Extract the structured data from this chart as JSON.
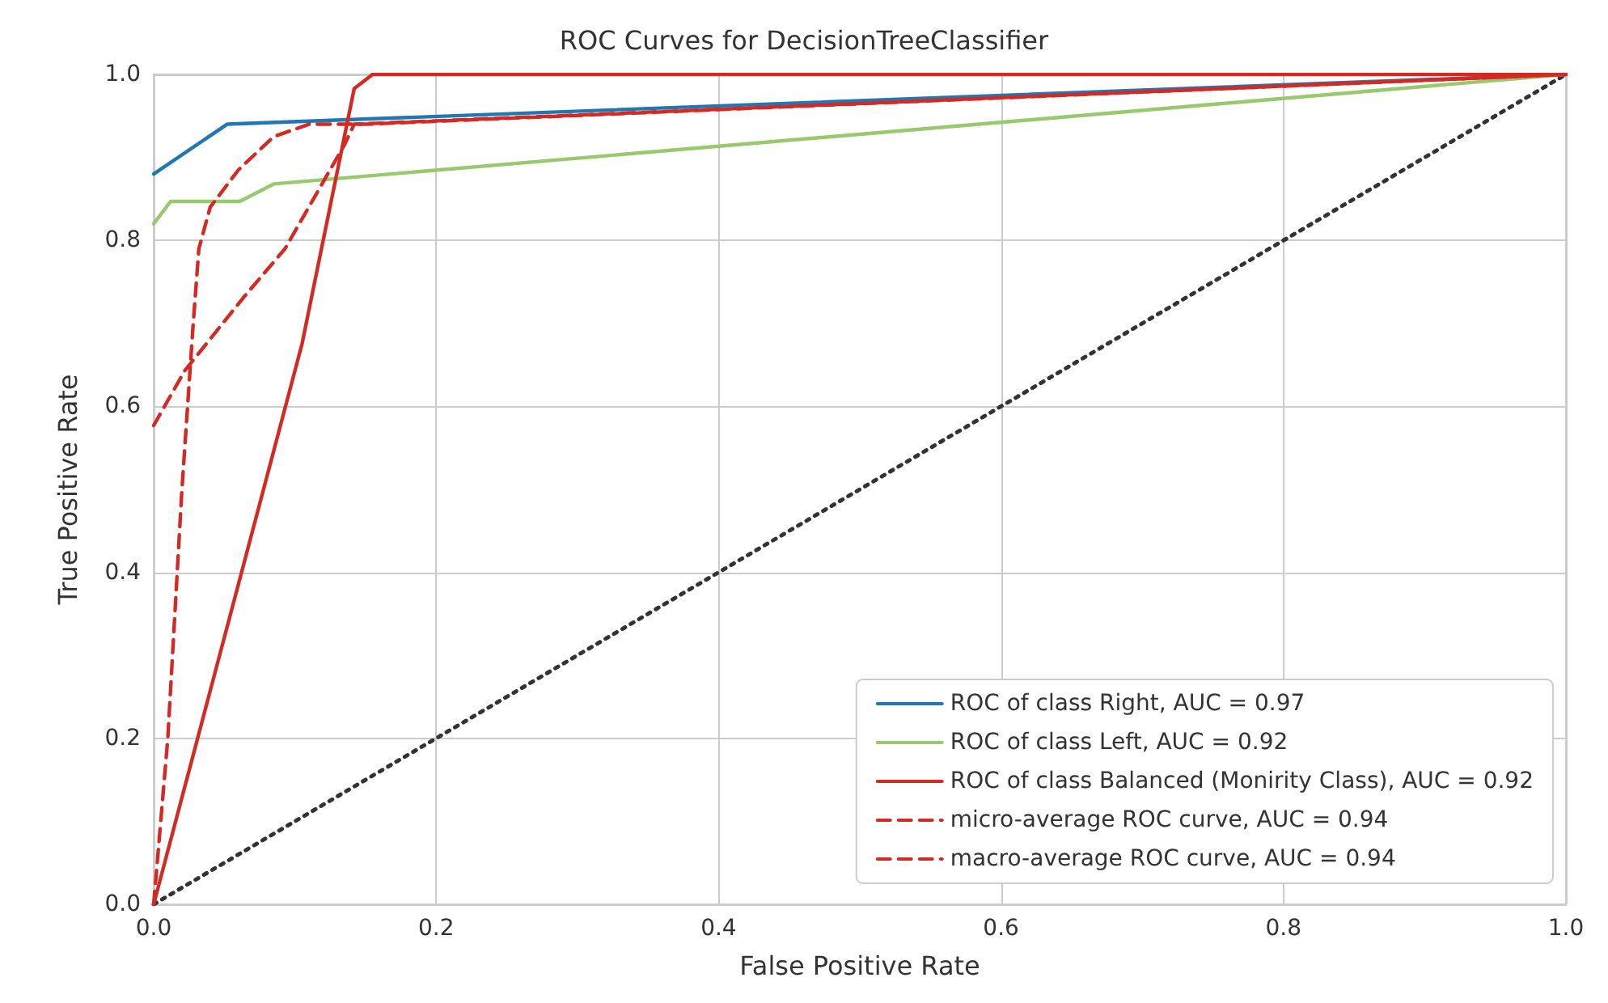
{
  "chart_data": {
    "type": "line",
    "title": "ROC Curves for DecisionTreeClassifier",
    "xlabel": "False Positive Rate",
    "ylabel": "True Positive Rate",
    "xlim": [
      0,
      1
    ],
    "ylim": [
      0,
      1
    ],
    "xticks": [
      {
        "value": 0,
        "label": "0.0"
      },
      {
        "value": 0.2,
        "label": "0.2"
      },
      {
        "value": 0.4,
        "label": "0.4"
      },
      {
        "value": 0.6,
        "label": "0.6"
      },
      {
        "value": 0.8,
        "label": "0.8"
      },
      {
        "value": 1,
        "label": "1.0"
      }
    ],
    "yticks": [
      {
        "value": 0,
        "label": "0.0"
      },
      {
        "value": 0.2,
        "label": "0.2"
      },
      {
        "value": 0.4,
        "label": "0.4"
      },
      {
        "value": 0.6,
        "label": "0.6"
      },
      {
        "value": 0.8,
        "label": "0.8"
      },
      {
        "value": 1,
        "label": "1.0"
      }
    ],
    "grid": true,
    "legend": "bottom right",
    "marker": "none",
    "series": [
      {
        "name": "ROC of class Right, AUC = 0.97",
        "color": "#2077b4",
        "line_style": "solid",
        "x": [
          0,
          0.052,
          1
        ],
        "values": [
          0.88,
          0.94,
          1
        ]
      },
      {
        "name": "ROC of class Left, AUC = 0.92",
        "color": "#98c96f",
        "line_style": "solid",
        "x": [
          0,
          0.012,
          0.061,
          0.085,
          1
        ],
        "values": [
          0.82,
          0.847,
          0.847,
          0.868,
          1
        ]
      },
      {
        "name": "ROC of class Balanced (Monirity Class), AUC = 0.92",
        "color": "#d42a24",
        "line_style": "solid",
        "x": [
          0,
          0.105,
          0.142,
          0.155,
          1
        ],
        "values": [
          0,
          0.675,
          0.983,
          1,
          1
        ]
      },
      {
        "name": "micro-average ROC curve, AUC = 0.94",
        "color": "#d42a24",
        "line_style": "dashed",
        "x": [
          0,
          0.01,
          0.02,
          0.028,
          0.032,
          0.04,
          0.06,
          0.085,
          0.11,
          0.15,
          1
        ],
        "values": [
          0,
          0.2,
          0.5,
          0.7,
          0.79,
          0.84,
          0.885,
          0.925,
          0.94,
          0.94,
          1
        ]
      },
      {
        "name": "macro-average ROC curve, AUC = 0.94",
        "color": "#d42a24",
        "line_style": "dashed",
        "x": [
          0,
          0.022,
          0.063,
          0.093,
          0.135,
          0.142,
          1
        ],
        "values": [
          0.577,
          0.643,
          0.73,
          0.79,
          0.915,
          0.94,
          1
        ]
      },
      {
        "color": "#333333",
        "line_style": "dotted",
        "x": [
          0,
          1
        ],
        "values": [
          0,
          1
        ]
      }
    ]
  }
}
